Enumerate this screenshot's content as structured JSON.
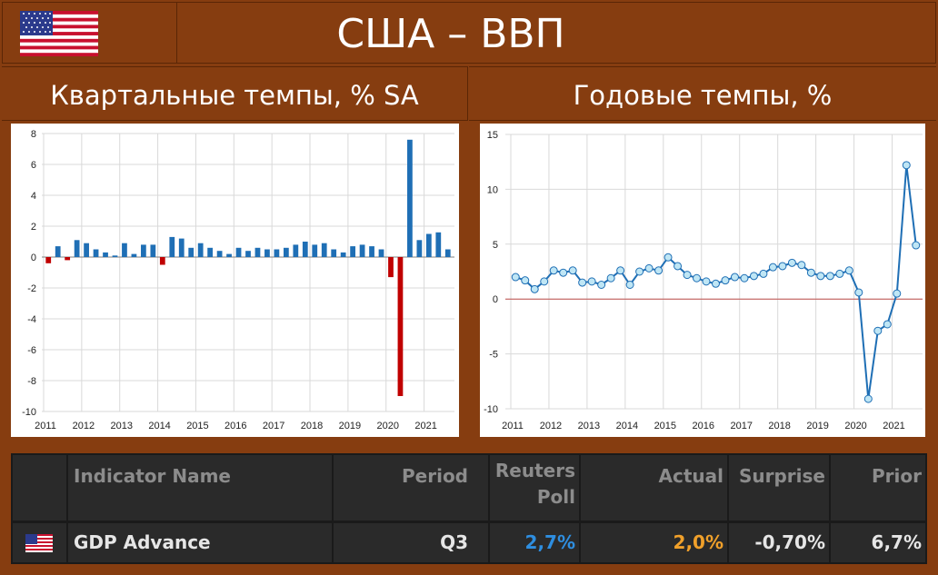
{
  "header": {
    "title": "США – ВВП",
    "left_subtitle": "Квартальные темпы, % SA",
    "right_subtitle": "Годовые темпы, %",
    "flag_icon": "us-flag-icon"
  },
  "colors": {
    "positive_bar": "#1f6fb5",
    "negative_bar": "#c00000",
    "line": "#1f6fb5",
    "marker_fill": "#bfe6f5",
    "zero_line": "#c0504d",
    "frame": "#863d10",
    "poll": "#2e8ee0",
    "actual": "#f0a02a"
  },
  "chart_data": [
    {
      "type": "bar",
      "title": "Квартальные темпы, % SA",
      "ylim": [
        -10,
        8
      ],
      "yticks": [
        8,
        6,
        4,
        2,
        0,
        -2,
        -4,
        -6,
        -8,
        -10
      ],
      "xticks": [
        "2011",
        "2012",
        "2013",
        "2014",
        "2015",
        "2016",
        "2017",
        "2018",
        "2019",
        "2020",
        "2021"
      ],
      "values": [
        -0.4,
        0.7,
        -0.2,
        1.1,
        0.9,
        0.5,
        0.3,
        0.1,
        0.9,
        0.2,
        0.8,
        0.8,
        -0.5,
        1.3,
        1.2,
        0.6,
        0.9,
        0.6,
        0.4,
        0.2,
        0.6,
        0.4,
        0.6,
        0.5,
        0.5,
        0.6,
        0.8,
        1.0,
        0.8,
        0.9,
        0.5,
        0.3,
        0.7,
        0.8,
        0.7,
        0.5,
        -1.3,
        -9.0,
        7.6,
        1.1,
        1.5,
        1.6,
        0.5
      ]
    },
    {
      "type": "line",
      "title": "Годовые темпы, %",
      "ylim": [
        -10,
        15
      ],
      "yticks": [
        15,
        10,
        5,
        0,
        -5,
        -10
      ],
      "xticks": [
        "2011",
        "2012",
        "2013",
        "2014",
        "2015",
        "2016",
        "2017",
        "2018",
        "2019",
        "2020",
        "2021"
      ],
      "values": [
        2.0,
        1.7,
        0.9,
        1.6,
        2.6,
        2.4,
        2.6,
        1.5,
        1.6,
        1.3,
        1.9,
        2.6,
        1.3,
        2.5,
        2.8,
        2.6,
        3.8,
        3.0,
        2.2,
        1.9,
        1.6,
        1.4,
        1.7,
        2.0,
        1.9,
        2.1,
        2.3,
        2.9,
        3.0,
        3.3,
        3.1,
        2.4,
        2.1,
        2.1,
        2.3,
        2.6,
        0.6,
        -9.1,
        -2.9,
        -2.3,
        0.5,
        12.2,
        4.9
      ]
    }
  ],
  "table": {
    "headers": {
      "indicator": "Indicator Name",
      "period": "Period",
      "poll_line1": "Reuters",
      "poll_line2": "Poll",
      "actual": "Actual",
      "surprise": "Surprise",
      "prior": "Prior"
    },
    "row": {
      "flag_icon": "us-flag-icon",
      "indicator": "GDP Advance",
      "period": "Q3",
      "poll": "2,7%",
      "actual": "2,0%",
      "surprise": "-0,70%",
      "prior": "6,7%"
    }
  }
}
